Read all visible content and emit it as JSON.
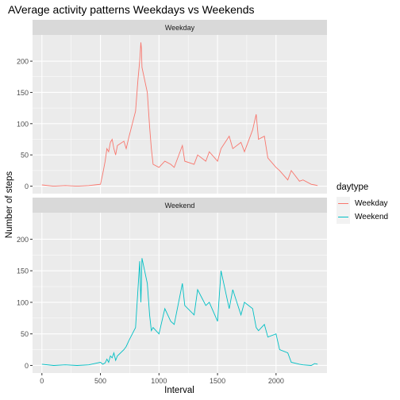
{
  "chart_data": {
    "type": "line",
    "title": "AVerage activity patterns Weekdays vs Weekends",
    "xlabel": "Interval",
    "ylabel": "Number of steps",
    "xlim": [
      -80,
      2435
    ],
    "ylim": [
      -12,
      242
    ],
    "x_ticks": [
      0,
      500,
      1000,
      1500,
      2000
    ],
    "y_ticks": [
      0,
      50,
      100,
      150,
      200
    ],
    "legend": {
      "title": "daytype",
      "position": "right"
    },
    "grid": true,
    "panels": [
      {
        "label": "Weekday",
        "series_name": "Weekday",
        "color": "#F8766D",
        "x": [
          0,
          100,
          200,
          300,
          400,
          450,
          500,
          520,
          540,
          555,
          570,
          585,
          600,
          615,
          630,
          645,
          700,
          720,
          745,
          800,
          820,
          835,
          845,
          850,
          855,
          900,
          920,
          935,
          950,
          1000,
          1050,
          1100,
          1130,
          1200,
          1220,
          1300,
          1330,
          1400,
          1430,
          1500,
          1530,
          1600,
          1630,
          1700,
          1730,
          1800,
          1830,
          1850,
          1900,
          1930,
          2000,
          2030,
          2100,
          2130,
          2200,
          2230,
          2300,
          2330,
          2355
        ],
        "y": [
          2,
          0,
          1,
          0,
          1,
          2,
          3,
          20,
          40,
          60,
          55,
          70,
          75,
          60,
          50,
          65,
          72,
          60,
          80,
          120,
          170,
          200,
          230,
          220,
          190,
          150,
          95,
          60,
          35,
          30,
          40,
          35,
          30,
          65,
          40,
          35,
          50,
          40,
          55,
          40,
          60,
          80,
          60,
          70,
          55,
          90,
          115,
          75,
          80,
          45,
          30,
          25,
          10,
          25,
          8,
          10,
          3,
          2,
          1
        ]
      },
      {
        "label": "Weekend",
        "series_name": "Weekend",
        "color": "#00BFC4",
        "x": [
          0,
          100,
          200,
          300,
          400,
          450,
          500,
          520,
          540,
          555,
          570,
          585,
          600,
          615,
          630,
          645,
          700,
          720,
          745,
          800,
          820,
          835,
          845,
          850,
          855,
          900,
          920,
          935,
          950,
          1000,
          1050,
          1100,
          1130,
          1200,
          1220,
          1300,
          1330,
          1400,
          1430,
          1500,
          1530,
          1600,
          1630,
          1700,
          1730,
          1800,
          1830,
          1850,
          1900,
          1930,
          2000,
          2030,
          2100,
          2130,
          2200,
          2230,
          2300,
          2330,
          2355
        ],
        "y": [
          2,
          0,
          1,
          0,
          1,
          3,
          5,
          2,
          4,
          10,
          5,
          15,
          12,
          20,
          8,
          15,
          25,
          30,
          40,
          60,
          120,
          165,
          100,
          130,
          170,
          130,
          80,
          55,
          60,
          50,
          90,
          70,
          65,
          130,
          95,
          80,
          120,
          95,
          100,
          70,
          150,
          90,
          120,
          80,
          100,
          90,
          60,
          55,
          65,
          45,
          50,
          25,
          20,
          5,
          2,
          1,
          0,
          3,
          2
        ]
      }
    ]
  }
}
